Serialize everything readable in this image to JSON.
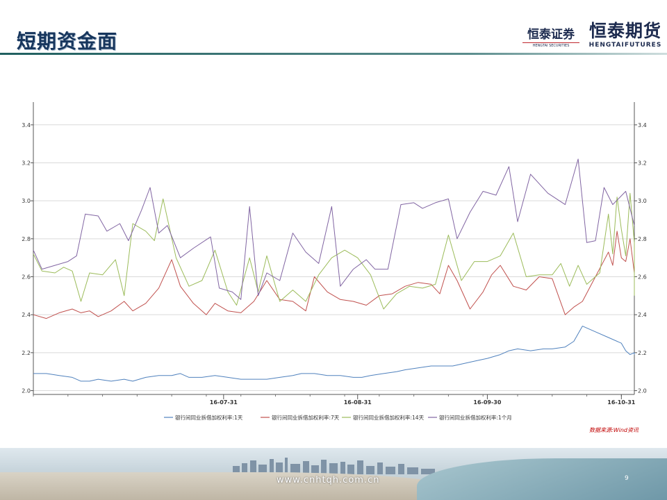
{
  "slide": {
    "title": "短期资金面",
    "logo_left": "恒泰证券",
    "logo_left_sub": "HENGTAI SECURITIES",
    "logo_right": "恒泰期货",
    "logo_right_sub": "HENGTAIFUTURES",
    "source": "数据来源:Wind资讯",
    "website": "www.cnhtqh.com.cn",
    "page_number": "9"
  },
  "chart_data": {
    "type": "line",
    "x_ticks": [
      "16-07-31",
      "16-08-31",
      "16-09-30",
      "16-10-31"
    ],
    "y_ticks_left": [
      "2.0",
      "2.2",
      "2.4",
      "2.6",
      "2.8",
      "3.0",
      "3.2",
      "3.4"
    ],
    "y_ticks_right": [
      "2.0",
      "2.2",
      "2.4",
      "2.6",
      "2.8",
      "3.0",
      "3.2",
      "3.4"
    ],
    "ylim": [
      1.98,
      3.52
    ],
    "xlim": [
      "2016-06-17",
      "2016-11-03"
    ],
    "legend_position": "bottom",
    "grid": "horizontal",
    "colors": [
      "#4f81bd",
      "#c0504d",
      "#9bbb59",
      "#8064a2"
    ],
    "legend": [
      "银行间同业拆借加权利率:1天",
      "银行间同业拆借加权利率:7天",
      "银行间同业拆借加权利率:14天",
      "银行间同业拆借加权利率:1个月"
    ],
    "series": [
      {
        "name": "银行间同业拆借加权利率:1天",
        "points": [
          [
            "2016-06-17",
            2.09
          ],
          [
            "2016-06-20",
            2.09
          ],
          [
            "2016-06-23",
            2.08
          ],
          [
            "2016-06-26",
            2.07
          ],
          [
            "2016-06-28",
            2.05
          ],
          [
            "2016-06-30",
            2.05
          ],
          [
            "2016-07-02",
            2.06
          ],
          [
            "2016-07-05",
            2.05
          ],
          [
            "2016-07-08",
            2.06
          ],
          [
            "2016-07-10",
            2.05
          ],
          [
            "2016-07-13",
            2.07
          ],
          [
            "2016-07-16",
            2.08
          ],
          [
            "2016-07-19",
            2.08
          ],
          [
            "2016-07-21",
            2.09
          ],
          [
            "2016-07-23",
            2.07
          ],
          [
            "2016-07-26",
            2.07
          ],
          [
            "2016-07-29",
            2.08
          ],
          [
            "2016-08-01",
            2.07
          ],
          [
            "2016-08-04",
            2.06
          ],
          [
            "2016-08-07",
            2.06
          ],
          [
            "2016-08-10",
            2.06
          ],
          [
            "2016-08-13",
            2.07
          ],
          [
            "2016-08-16",
            2.08
          ],
          [
            "2016-08-18",
            2.09
          ],
          [
            "2016-08-21",
            2.09
          ],
          [
            "2016-08-24",
            2.08
          ],
          [
            "2016-08-27",
            2.08
          ],
          [
            "2016-08-30",
            2.07
          ],
          [
            "2016-09-01",
            2.07
          ],
          [
            "2016-09-03",
            2.08
          ],
          [
            "2016-09-06",
            2.09
          ],
          [
            "2016-09-09",
            2.1
          ],
          [
            "2016-09-11",
            2.11
          ],
          [
            "2016-09-14",
            2.12
          ],
          [
            "2016-09-17",
            2.13
          ],
          [
            "2016-09-19",
            2.13
          ],
          [
            "2016-09-22",
            2.13
          ],
          [
            "2016-09-24",
            2.14
          ],
          [
            "2016-09-26",
            2.15
          ],
          [
            "2016-09-28",
            2.16
          ],
          [
            "2016-09-30",
            2.17
          ],
          [
            "2016-10-03",
            2.19
          ],
          [
            "2016-10-05",
            2.21
          ],
          [
            "2016-10-07",
            2.22
          ],
          [
            "2016-10-10",
            2.21
          ],
          [
            "2016-10-13",
            2.22
          ],
          [
            "2016-10-15",
            2.22
          ],
          [
            "2016-10-18",
            2.23
          ],
          [
            "2016-10-20",
            2.26
          ],
          [
            "2016-10-22",
            2.34
          ],
          [
            "2016-10-25",
            2.31
          ],
          [
            "2016-10-28",
            2.28
          ],
          [
            "2016-10-31",
            2.25
          ],
          [
            "2016-11-01",
            2.21
          ],
          [
            "2016-11-02",
            2.19
          ],
          [
            "2016-11-03",
            2.2
          ],
          [
            "2016-11-03",
            2.19
          ]
        ]
      },
      {
        "name": "银行间同业拆借加权利率:7天",
        "points": [
          [
            "2016-06-17",
            2.4
          ],
          [
            "2016-06-20",
            2.38
          ],
          [
            "2016-06-23",
            2.41
          ],
          [
            "2016-06-26",
            2.43
          ],
          [
            "2016-06-28",
            2.41
          ],
          [
            "2016-06-30",
            2.42
          ],
          [
            "2016-07-02",
            2.39
          ],
          [
            "2016-07-05",
            2.42
          ],
          [
            "2016-07-08",
            2.47
          ],
          [
            "2016-07-10",
            2.42
          ],
          [
            "2016-07-13",
            2.46
          ],
          [
            "2016-07-16",
            2.54
          ],
          [
            "2016-07-19",
            2.69
          ],
          [
            "2016-07-21",
            2.55
          ],
          [
            "2016-07-24",
            2.46
          ],
          [
            "2016-07-27",
            2.4
          ],
          [
            "2016-07-29",
            2.46
          ],
          [
            "2016-08-01",
            2.42
          ],
          [
            "2016-08-04",
            2.41
          ],
          [
            "2016-08-07",
            2.47
          ],
          [
            "2016-08-10",
            2.58
          ],
          [
            "2016-08-13",
            2.48
          ],
          [
            "2016-08-16",
            2.47
          ],
          [
            "2016-08-19",
            2.42
          ],
          [
            "2016-08-21",
            2.6
          ],
          [
            "2016-08-24",
            2.52
          ],
          [
            "2016-08-27",
            2.48
          ],
          [
            "2016-08-30",
            2.47
          ],
          [
            "2016-09-02",
            2.45
          ],
          [
            "2016-09-05",
            2.5
          ],
          [
            "2016-09-08",
            2.51
          ],
          [
            "2016-09-11",
            2.55
          ],
          [
            "2016-09-14",
            2.57
          ],
          [
            "2016-09-17",
            2.56
          ],
          [
            "2016-09-19",
            2.51
          ],
          [
            "2016-09-21",
            2.66
          ],
          [
            "2016-09-23",
            2.58
          ],
          [
            "2016-09-26",
            2.43
          ],
          [
            "2016-09-29",
            2.52
          ],
          [
            "2016-10-01",
            2.61
          ],
          [
            "2016-10-03",
            2.66
          ],
          [
            "2016-10-06",
            2.55
          ],
          [
            "2016-10-09",
            2.53
          ],
          [
            "2016-10-12",
            2.6
          ],
          [
            "2016-10-15",
            2.59
          ],
          [
            "2016-10-18",
            2.4
          ],
          [
            "2016-10-20",
            2.44
          ],
          [
            "2016-10-22",
            2.47
          ],
          [
            "2016-10-25",
            2.6
          ],
          [
            "2016-10-28",
            2.73
          ],
          [
            "2016-10-29",
            2.66
          ],
          [
            "2016-10-30",
            2.84
          ],
          [
            "2016-10-31",
            2.7
          ],
          [
            "2016-11-01",
            2.68
          ],
          [
            "2016-11-02",
            2.8
          ],
          [
            "2016-11-03",
            2.62
          ],
          [
            "2016-11-03",
            2.63
          ]
        ]
      },
      {
        "name": "银行间同业拆借加权利率:14天",
        "points": [
          [
            "2016-06-17",
            2.72
          ],
          [
            "2016-06-19",
            2.63
          ],
          [
            "2016-06-22",
            2.62
          ],
          [
            "2016-06-24",
            2.65
          ],
          [
            "2016-06-26",
            2.63
          ],
          [
            "2016-06-28",
            2.47
          ],
          [
            "2016-06-30",
            2.62
          ],
          [
            "2016-07-03",
            2.61
          ],
          [
            "2016-07-06",
            2.69
          ],
          [
            "2016-07-08",
            2.5
          ],
          [
            "2016-07-10",
            2.88
          ],
          [
            "2016-07-13",
            2.84
          ],
          [
            "2016-07-15",
            2.79
          ],
          [
            "2016-07-17",
            3.01
          ],
          [
            "2016-07-20",
            2.7
          ],
          [
            "2016-07-23",
            2.55
          ],
          [
            "2016-07-26",
            2.58
          ],
          [
            "2016-07-29",
            2.74
          ],
          [
            "2016-08-01",
            2.52
          ],
          [
            "2016-08-03",
            2.45
          ],
          [
            "2016-08-06",
            2.7
          ],
          [
            "2016-08-08",
            2.52
          ],
          [
            "2016-08-10",
            2.71
          ],
          [
            "2016-08-13",
            2.47
          ],
          [
            "2016-08-16",
            2.53
          ],
          [
            "2016-08-19",
            2.47
          ],
          [
            "2016-08-22",
            2.61
          ],
          [
            "2016-08-25",
            2.7
          ],
          [
            "2016-08-28",
            2.74
          ],
          [
            "2016-08-31",
            2.7
          ],
          [
            "2016-09-03",
            2.61
          ],
          [
            "2016-09-06",
            2.43
          ],
          [
            "2016-09-09",
            2.51
          ],
          [
            "2016-09-12",
            2.55
          ],
          [
            "2016-09-15",
            2.54
          ],
          [
            "2016-09-18",
            2.56
          ],
          [
            "2016-09-21",
            2.82
          ],
          [
            "2016-09-24",
            2.58
          ],
          [
            "2016-09-27",
            2.68
          ],
          [
            "2016-09-30",
            2.68
          ],
          [
            "2016-10-03",
            2.71
          ],
          [
            "2016-10-06",
            2.83
          ],
          [
            "2016-10-09",
            2.6
          ],
          [
            "2016-10-12",
            2.61
          ],
          [
            "2016-10-15",
            2.61
          ],
          [
            "2016-10-17",
            2.67
          ],
          [
            "2016-10-19",
            2.55
          ],
          [
            "2016-10-21",
            2.66
          ],
          [
            "2016-10-23",
            2.56
          ],
          [
            "2016-10-26",
            2.62
          ],
          [
            "2016-10-28",
            2.93
          ],
          [
            "2016-10-29",
            2.72
          ],
          [
            "2016-10-30",
            3.02
          ],
          [
            "2016-10-31",
            2.85
          ],
          [
            "2016-11-01",
            2.71
          ],
          [
            "2016-11-02",
            3.04
          ],
          [
            "2016-11-03",
            2.78
          ],
          [
            "2016-11-03",
            2.5
          ]
        ]
      },
      {
        "name": "银行间同业拆借加权利率:1个月",
        "points": [
          [
            "2016-06-17",
            2.74
          ],
          [
            "2016-06-19",
            2.64
          ],
          [
            "2016-06-22",
            2.66
          ],
          [
            "2016-06-25",
            2.68
          ],
          [
            "2016-06-27",
            2.71
          ],
          [
            "2016-06-29",
            2.93
          ],
          [
            "2016-07-02",
            2.92
          ],
          [
            "2016-07-04",
            2.84
          ],
          [
            "2016-07-07",
            2.88
          ],
          [
            "2016-07-09",
            2.79
          ],
          [
            "2016-07-12",
            2.95
          ],
          [
            "2016-07-14",
            3.07
          ],
          [
            "2016-07-16",
            2.83
          ],
          [
            "2016-07-18",
            2.87
          ],
          [
            "2016-07-21",
            2.7
          ],
          [
            "2016-07-24",
            2.75
          ],
          [
            "2016-07-28",
            2.81
          ],
          [
            "2016-07-30",
            2.54
          ],
          [
            "2016-08-02",
            2.52
          ],
          [
            "2016-08-04",
            2.48
          ],
          [
            "2016-08-06",
            2.97
          ],
          [
            "2016-08-08",
            2.5
          ],
          [
            "2016-08-10",
            2.62
          ],
          [
            "2016-08-13",
            2.58
          ],
          [
            "2016-08-16",
            2.83
          ],
          [
            "2016-08-19",
            2.73
          ],
          [
            "2016-08-22",
            2.67
          ],
          [
            "2016-08-25",
            2.97
          ],
          [
            "2016-08-27",
            2.55
          ],
          [
            "2016-08-30",
            2.64
          ],
          [
            "2016-09-02",
            2.69
          ],
          [
            "2016-09-04",
            2.64
          ],
          [
            "2016-09-07",
            2.64
          ],
          [
            "2016-09-10",
            2.98
          ],
          [
            "2016-09-13",
            2.99
          ],
          [
            "2016-09-15",
            2.96
          ],
          [
            "2016-09-18",
            2.99
          ],
          [
            "2016-09-21",
            3.01
          ],
          [
            "2016-09-23",
            2.8
          ],
          [
            "2016-09-26",
            2.94
          ],
          [
            "2016-09-29",
            3.05
          ],
          [
            "2016-10-02",
            3.03
          ],
          [
            "2016-10-05",
            3.18
          ],
          [
            "2016-10-07",
            2.89
          ],
          [
            "2016-10-10",
            3.14
          ],
          [
            "2016-10-14",
            3.04
          ],
          [
            "2016-10-18",
            2.98
          ],
          [
            "2016-10-21",
            3.22
          ],
          [
            "2016-10-23",
            2.78
          ],
          [
            "2016-10-25",
            2.79
          ],
          [
            "2016-10-27",
            3.07
          ],
          [
            "2016-10-29",
            2.98
          ],
          [
            "2016-11-01",
            3.05
          ],
          [
            "2016-11-03",
            2.87
          ]
        ]
      }
    ]
  }
}
